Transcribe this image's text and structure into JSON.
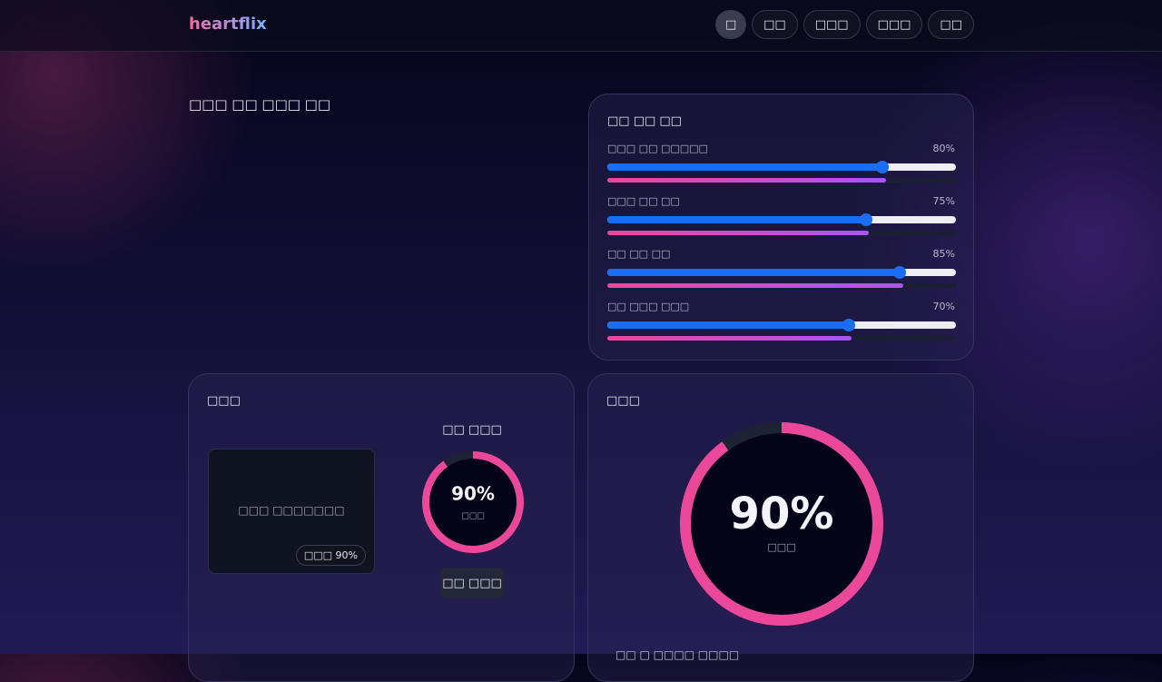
{
  "nav": {
    "logo": "heartflix",
    "items": [
      "□",
      "□□",
      "□□□",
      "□□□",
      "□□"
    ]
  },
  "hero": {
    "title": "□□□ □□ □□□ □□"
  },
  "sliders": {
    "title": "□□ □□ □□",
    "items": [
      {
        "label": "□□□ □□ □□□□□",
        "value": 80,
        "value_label": "80%"
      },
      {
        "label": "□□□ □□ □□",
        "value": 75,
        "value_label": "75%"
      },
      {
        "label": "□□ □□ □□",
        "value": 85,
        "value_label": "85%"
      },
      {
        "label": "□□ □□□ □□□",
        "value": 70,
        "value_label": "70%"
      }
    ]
  },
  "player": {
    "title": "□□□",
    "video_label": "□□□ □□□□□□□",
    "badge": "□□□ 90%",
    "ring": {
      "title": "□□ □□□",
      "value": 90,
      "value_label": "90%",
      "caption": "□□□"
    },
    "button": "□□ □□□"
  },
  "score": {
    "title": "□□□",
    "value": 90,
    "value_label": "90%",
    "caption": "□□□",
    "note": "□□ □ □□□□ □□□□"
  }
}
